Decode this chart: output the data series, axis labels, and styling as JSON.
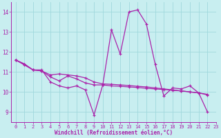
{
  "xlabel": "Windchill (Refroidissement éolien,°C)",
  "xlim": [
    -0.5,
    23
  ],
  "ylim": [
    8.5,
    14.5
  ],
  "yticks": [
    9,
    10,
    11,
    12,
    13,
    14
  ],
  "xticks": [
    0,
    1,
    2,
    3,
    4,
    5,
    6,
    7,
    8,
    9,
    10,
    11,
    12,
    13,
    14,
    15,
    16,
    17,
    18,
    19,
    20,
    21,
    22,
    23
  ],
  "background_color": "#c8eef0",
  "line_color": "#aa22aa",
  "grid_color": "#a0d8dc",
  "series": [
    [
      11.6,
      11.4,
      11.1,
      11.1,
      10.5,
      10.3,
      10.2,
      10.3,
      10.1,
      8.85,
      10.35,
      13.1,
      11.9,
      14.0,
      14.1,
      13.4,
      11.4,
      9.8,
      10.2,
      10.15,
      10.3,
      9.95,
      9.0
    ],
    [
      11.6,
      11.4,
      11.1,
      11.05,
      10.75,
      10.55,
      10.8,
      10.65,
      10.45,
      10.35,
      10.35,
      10.3,
      10.28,
      10.25,
      10.22,
      10.18,
      10.15,
      10.12,
      10.08,
      10.05,
      10.0,
      9.95,
      9.85
    ],
    [
      11.6,
      11.35,
      11.1,
      11.05,
      10.85,
      10.9,
      10.85,
      10.8,
      10.7,
      10.5,
      10.4,
      10.38,
      10.35,
      10.32,
      10.28,
      10.25,
      10.2,
      10.15,
      10.1,
      10.05,
      10.0,
      9.95,
      9.88
    ]
  ]
}
